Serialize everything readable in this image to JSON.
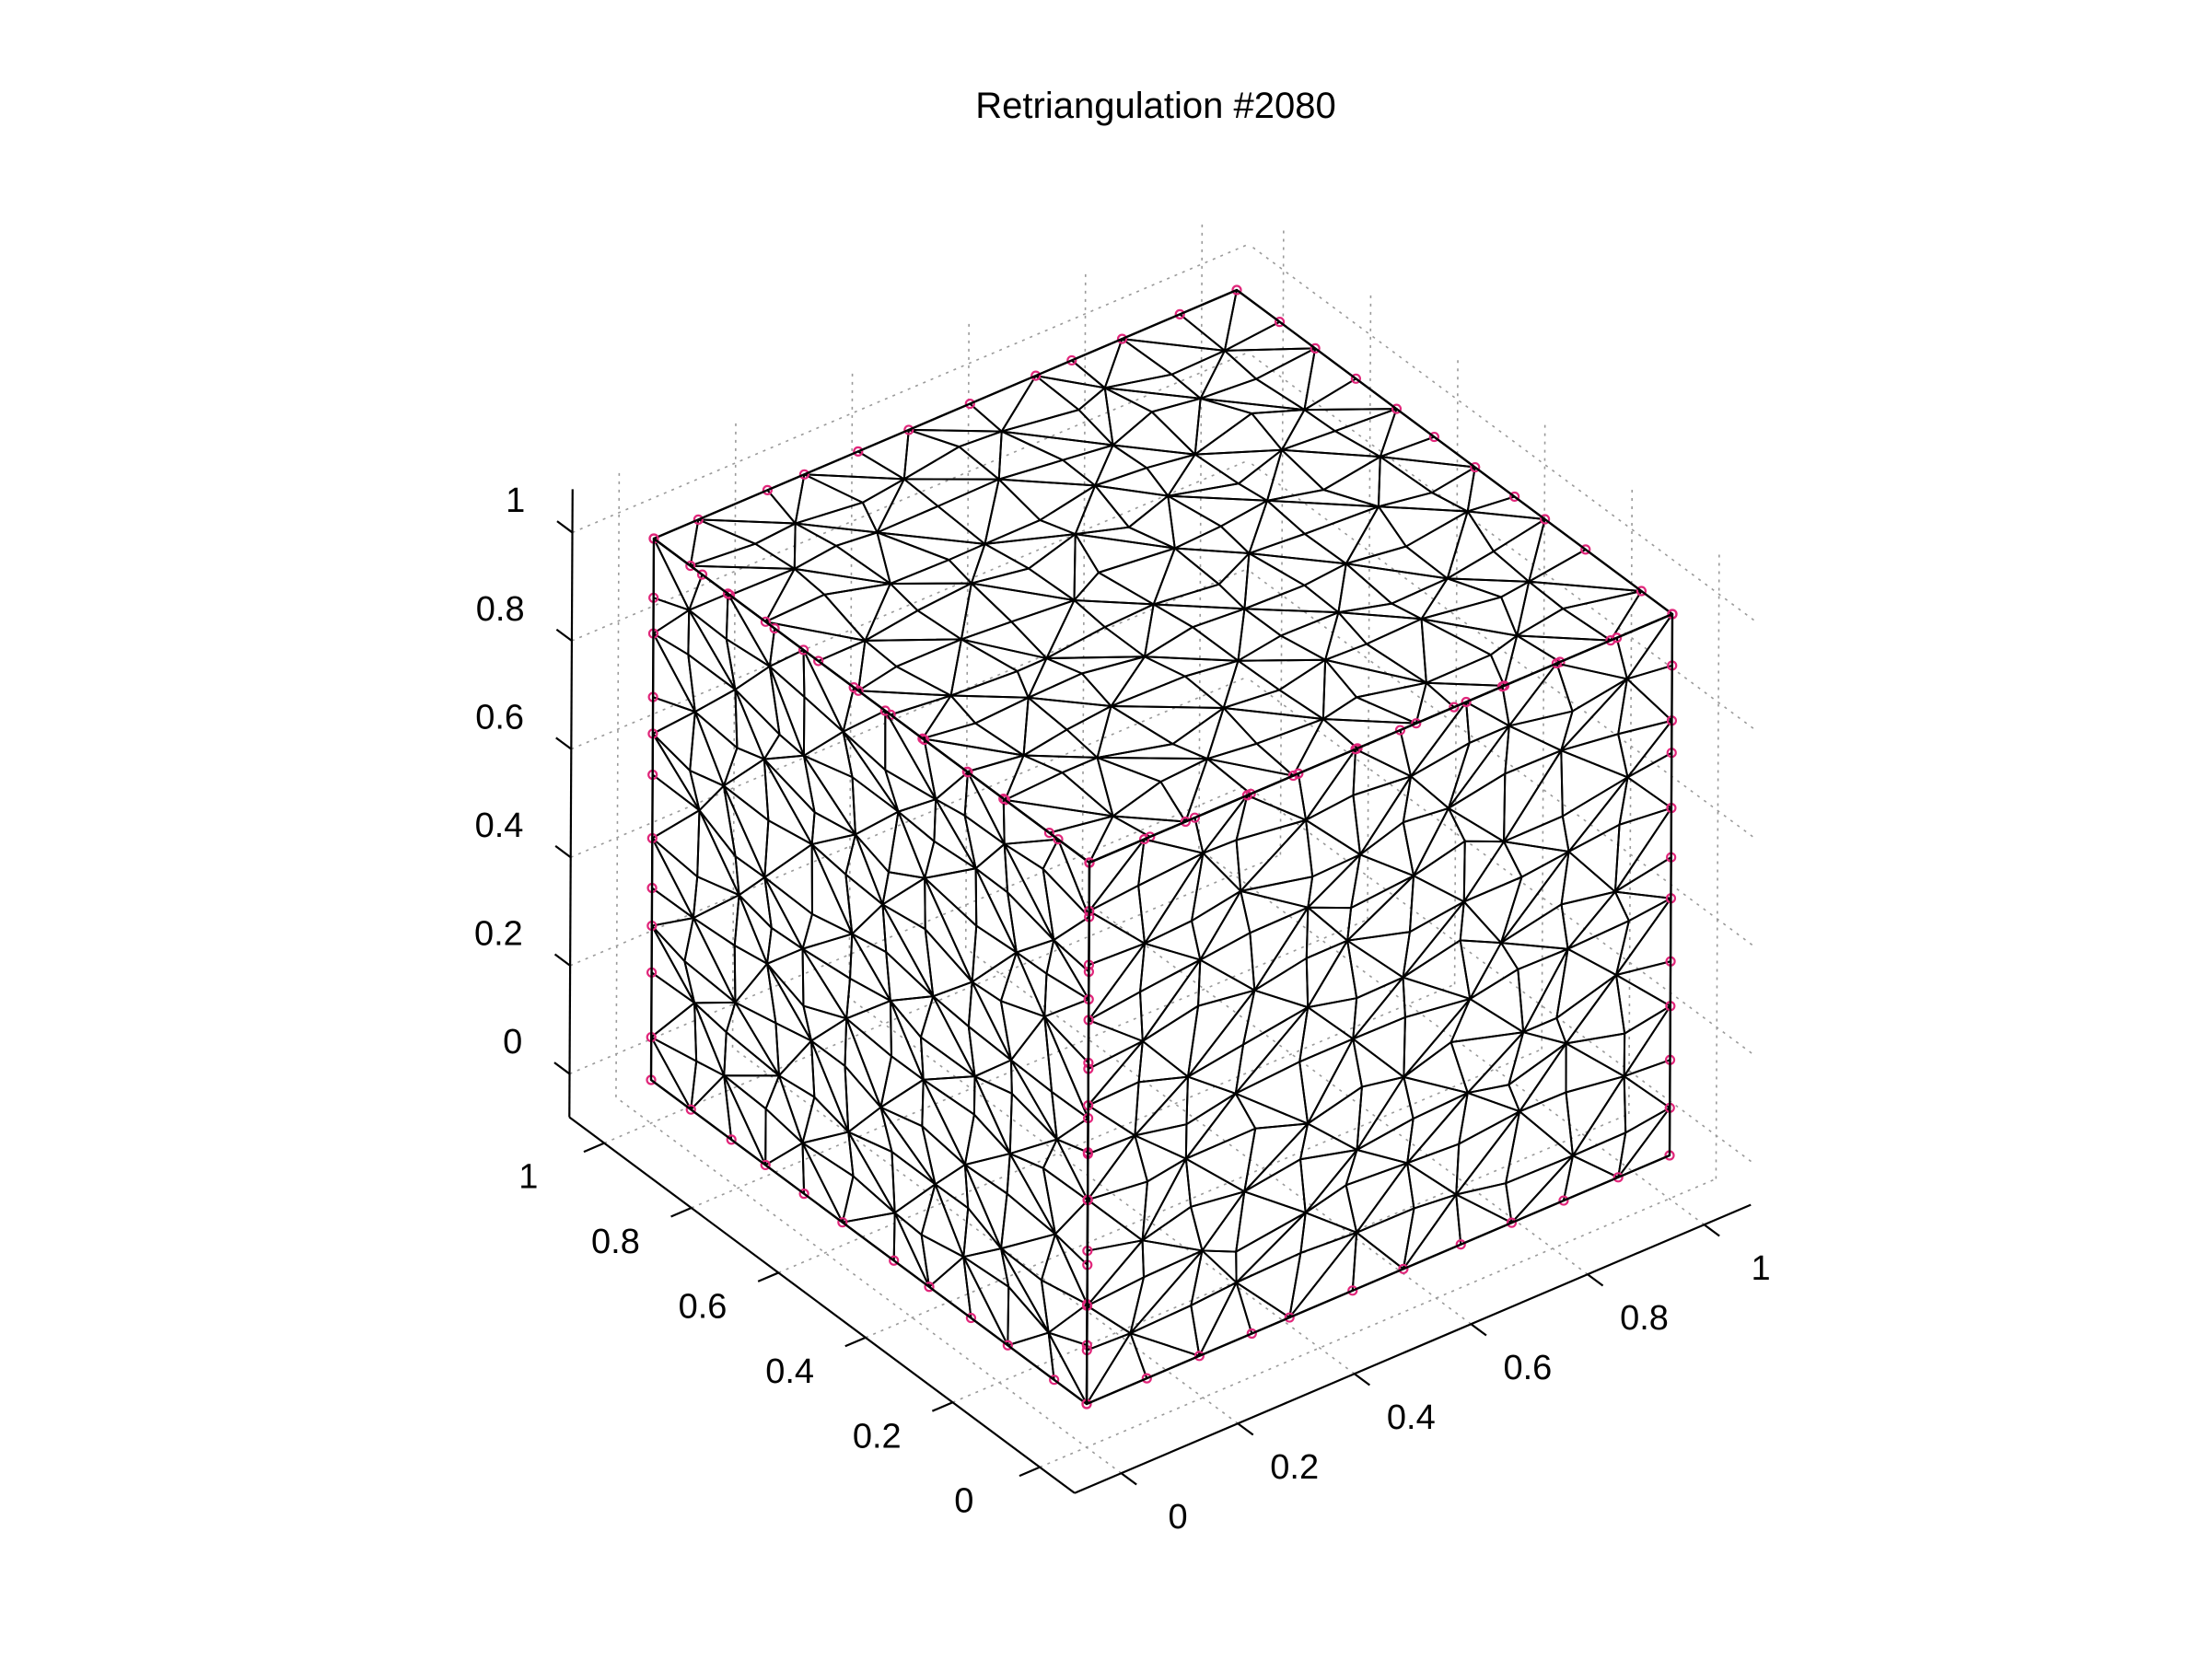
{
  "chart_data": {
    "type": "surface-mesh-3d",
    "title": "Retriangulation #2080",
    "x_ticks": [
      "0",
      "0.2",
      "0.4",
      "0.6",
      "0.8",
      "1"
    ],
    "y_ticks": [
      "0",
      "0.2",
      "0.4",
      "0.6",
      "0.8",
      "1"
    ],
    "z_ticks": [
      "0",
      "0.2",
      "0.4",
      "0.6",
      "0.8",
      "1"
    ],
    "xlim": [
      -0.08,
      1.08
    ],
    "ylim": [
      -0.08,
      1.08
    ],
    "zlim": [
      -0.08,
      1.08
    ],
    "tick_values": [
      0,
      0.2,
      0.4,
      0.6,
      0.8,
      1
    ],
    "grid": true,
    "object": "unit cube surface triangulation",
    "cube_bounds": {
      "min": [
        0,
        0,
        0
      ],
      "max": [
        1,
        1,
        1
      ]
    },
    "mesh_subdivisions": 11,
    "colors": {
      "face": "#1cb0cc",
      "highlight": "#1dccb4",
      "edge": "#000000",
      "node": "#e0267a",
      "grid": "#9a9a9a"
    }
  }
}
